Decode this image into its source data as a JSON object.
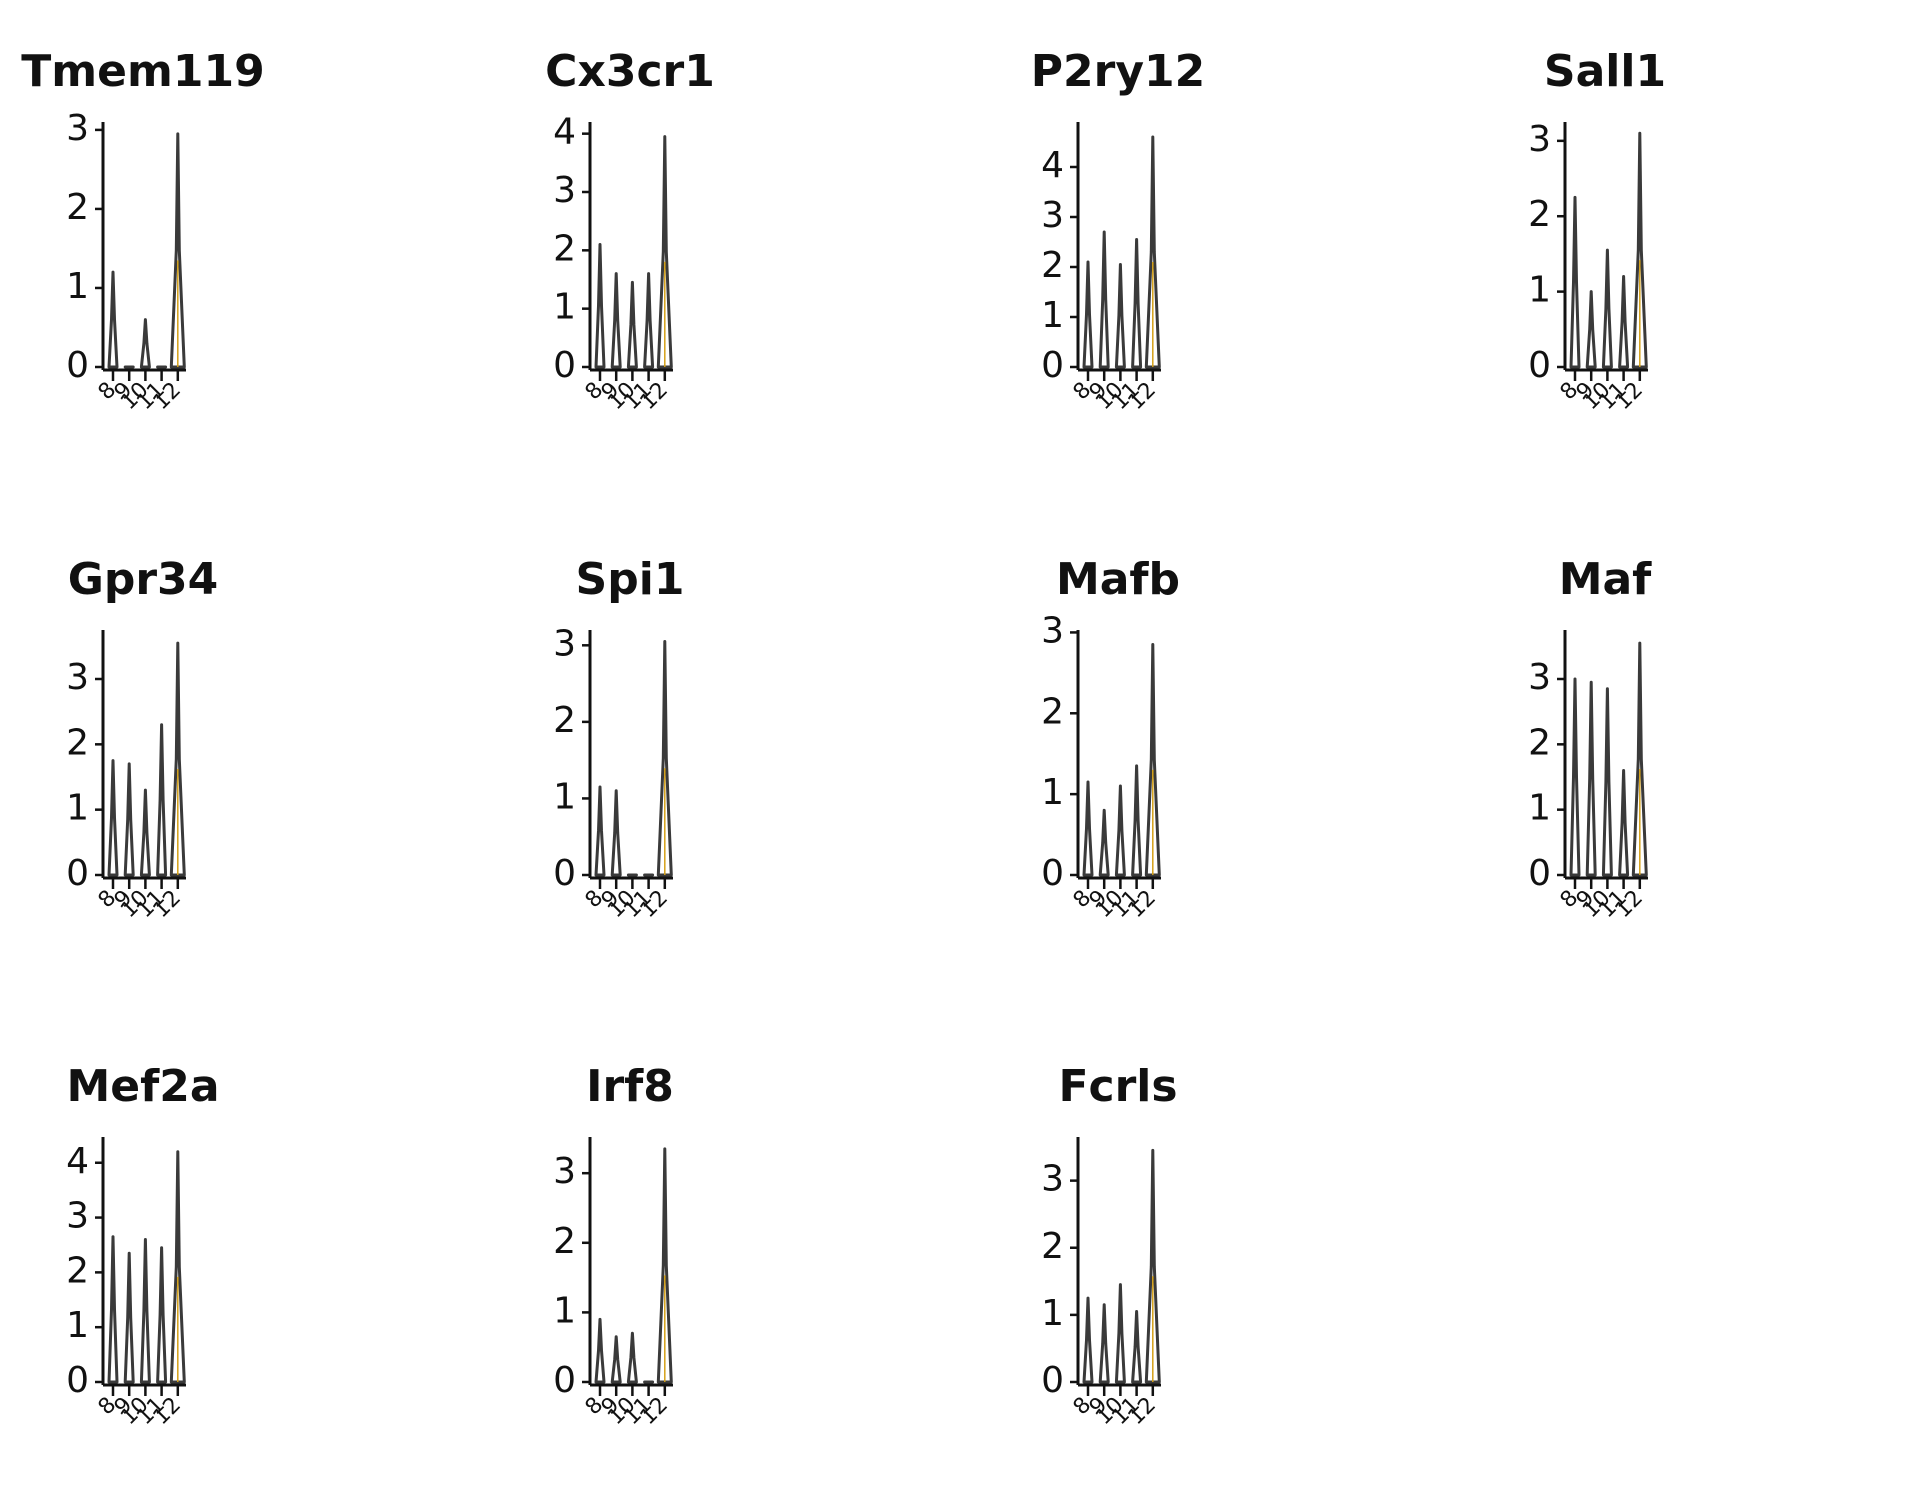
{
  "chart_data": [
    {
      "type": "violin",
      "title": "Tmem119",
      "categories": [
        "8",
        "9",
        "10",
        "11",
        "12"
      ],
      "values": [
        1.2,
        0,
        0.6,
        0,
        2.95
      ],
      "ylim": [
        0,
        3.1
      ],
      "yticks": [
        0,
        1,
        2,
        3
      ],
      "color": "#3a3a3a",
      "median_color": "#d4a017"
    },
    {
      "type": "violin",
      "title": "Cx3cr1",
      "categories": [
        "8",
        "9",
        "10",
        "11",
        "12"
      ],
      "values": [
        2.1,
        1.6,
        1.45,
        1.6,
        3.95
      ],
      "ylim": [
        0,
        4.2
      ],
      "yticks": [
        0,
        1,
        2,
        3,
        4
      ],
      "color": "#3a3a3a",
      "median_color": "#d4a017"
    },
    {
      "type": "violin",
      "title": "P2ry12",
      "categories": [
        "8",
        "9",
        "10",
        "11",
        "12"
      ],
      "values": [
        2.1,
        2.7,
        2.05,
        2.55,
        4.6
      ],
      "ylim": [
        0,
        4.9
      ],
      "yticks": [
        0,
        1,
        2,
        3,
        4
      ],
      "color": "#3a3a3a",
      "median_color": "#d4a017"
    },
    {
      "type": "violin",
      "title": "Sall1",
      "categories": [
        "8",
        "9",
        "10",
        "11",
        "12"
      ],
      "values": [
        2.25,
        1.0,
        1.55,
        1.2,
        3.1
      ],
      "ylim": [
        0,
        3.25
      ],
      "yticks": [
        0,
        1,
        2,
        3
      ],
      "color": "#3a3a3a",
      "median_color": "#d4a017"
    },
    {
      "type": "violin",
      "title": "Gpr34",
      "categories": [
        "8",
        "9",
        "10",
        "11",
        "12"
      ],
      "values": [
        1.75,
        1.7,
        1.3,
        2.3,
        3.55
      ],
      "ylim": [
        0,
        3.75
      ],
      "yticks": [
        0,
        1,
        2,
        3
      ],
      "color": "#3a3a3a",
      "median_color": "#d4a017"
    },
    {
      "type": "violin",
      "title": "Spi1",
      "categories": [
        "8",
        "9",
        "10",
        "11",
        "12"
      ],
      "values": [
        1.15,
        1.1,
        0,
        0,
        3.05
      ],
      "ylim": [
        0,
        3.2
      ],
      "yticks": [
        0,
        1,
        2,
        3
      ],
      "color": "#3a3a3a",
      "median_color": "#d4a017"
    },
    {
      "type": "violin",
      "title": "Mafb",
      "categories": [
        "8",
        "9",
        "10",
        "11",
        "12"
      ],
      "values": [
        1.15,
        0.8,
        1.1,
        1.35,
        2.85
      ],
      "ylim": [
        0,
        3.03
      ],
      "yticks": [
        0,
        1,
        2,
        3
      ],
      "color": "#3a3a3a",
      "median_color": "#d4a017"
    },
    {
      "type": "violin",
      "title": "Maf",
      "categories": [
        "8",
        "9",
        "10",
        "11",
        "12"
      ],
      "values": [
        3.0,
        2.95,
        2.85,
        1.6,
        3.55
      ],
      "ylim": [
        0,
        3.75
      ],
      "yticks": [
        0,
        1,
        2,
        3
      ],
      "color": "#3a3a3a",
      "median_color": "#d4a017"
    },
    {
      "type": "violin",
      "title": "Mef2a",
      "categories": [
        "8",
        "9",
        "10",
        "11",
        "12"
      ],
      "values": [
        2.65,
        2.35,
        2.6,
        2.45,
        4.2
      ],
      "ylim": [
        0,
        4.47
      ],
      "yticks": [
        0,
        1,
        2,
        3,
        4
      ],
      "color": "#3a3a3a",
      "median_color": "#d4a017"
    },
    {
      "type": "violin",
      "title": "Irf8",
      "categories": [
        "8",
        "9",
        "10",
        "11",
        "12"
      ],
      "values": [
        0.9,
        0.65,
        0.7,
        0,
        3.35
      ],
      "ylim": [
        0,
        3.52
      ],
      "yticks": [
        0,
        1,
        2,
        3
      ],
      "color": "#3a3a3a",
      "median_color": "#d4a017"
    },
    {
      "type": "violin",
      "title": "Fcrls",
      "categories": [
        "8",
        "9",
        "10",
        "11",
        "12"
      ],
      "values": [
        1.25,
        1.15,
        1.45,
        1.05,
        3.45
      ],
      "ylim": [
        0,
        3.65
      ],
      "yticks": [
        0,
        1,
        2,
        3
      ],
      "color": "#3a3a3a",
      "median_color": "#d4a017"
    }
  ]
}
